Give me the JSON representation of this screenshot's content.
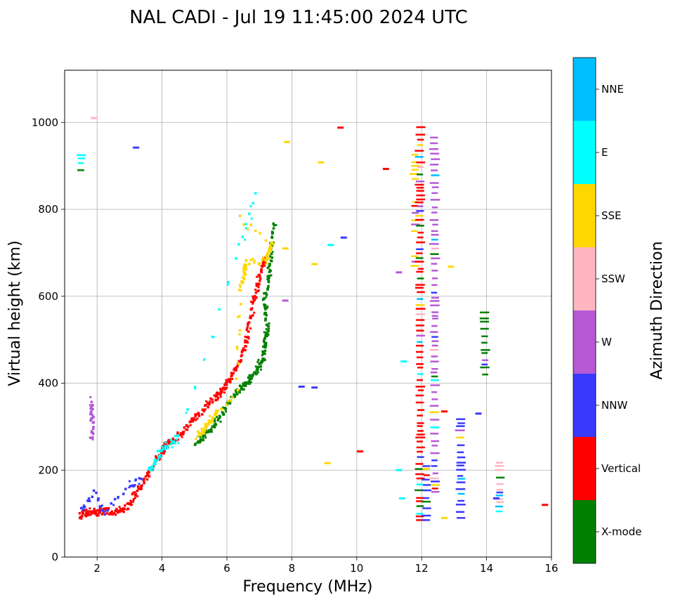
{
  "chart_data": {
    "type": "scatter",
    "title": "NAL CADI - Jul 19 11:45:00 2024 UTC",
    "xlabel": "Frequency (MHz)",
    "ylabel": "Virtual height (km)",
    "xlim": [
      1,
      16
    ],
    "ylim": [
      0,
      1120
    ],
    "xticks": [
      2,
      4,
      6,
      8,
      10,
      12,
      14,
      16
    ],
    "yticks": [
      0,
      200,
      400,
      600,
      800,
      1000
    ],
    "grid": true,
    "colorbar": {
      "label": "Azimuth Direction",
      "categories": [
        "X-mode",
        "Vertical",
        "NNW",
        "W",
        "SSW",
        "SSE",
        "E",
        "NNE"
      ],
      "colors": [
        "#008000",
        "#ff0000",
        "#3a3aff",
        "#b65ad6",
        "#ffb6c1",
        "#ffd700",
        "#00ffff",
        "#00bfff"
      ]
    },
    "traces": [
      {
        "category": "Vertical",
        "points": [
          [
            1.5,
            96
          ],
          [
            1.6,
            100
          ],
          [
            1.75,
            103
          ],
          [
            1.9,
            104
          ],
          [
            2.1,
            105
          ],
          [
            2.3,
            106
          ],
          [
            2.5,
            104
          ],
          [
            2.7,
            106
          ],
          [
            2.9,
            112
          ],
          [
            3.1,
            135
          ],
          [
            3.3,
            160
          ],
          [
            3.5,
            180
          ],
          [
            3.7,
            205
          ],
          [
            3.85,
            225
          ],
          [
            4.0,
            238
          ],
          [
            4.1,
            255
          ],
          [
            4.25,
            265
          ],
          [
            4.4,
            272
          ],
          [
            4.6,
            285
          ],
          [
            4.8,
            300
          ],
          [
            5.0,
            318
          ],
          [
            5.2,
            335
          ],
          [
            5.4,
            350
          ],
          [
            5.6,
            365
          ],
          [
            5.75,
            375
          ],
          [
            5.9,
            390
          ],
          [
            6.05,
            405
          ],
          [
            6.2,
            420
          ],
          [
            6.35,
            440
          ],
          [
            6.5,
            470
          ],
          [
            6.6,
            500
          ],
          [
            6.7,
            540
          ],
          [
            6.8,
            580
          ],
          [
            6.9,
            610
          ],
          [
            7.0,
            640
          ],
          [
            7.1,
            670
          ],
          [
            7.2,
            690
          ]
        ]
      },
      {
        "category": "X-mode",
        "points": [
          [
            5.0,
            260
          ],
          [
            5.2,
            270
          ],
          [
            5.4,
            285
          ],
          [
            5.6,
            300
          ],
          [
            5.8,
            325
          ],
          [
            6.0,
            350
          ],
          [
            6.2,
            370
          ],
          [
            6.4,
            385
          ],
          [
            6.55,
            395
          ],
          [
            6.7,
            410
          ],
          [
            6.85,
            425
          ],
          [
            7.0,
            440
          ],
          [
            7.1,
            455
          ],
          [
            7.15,
            480
          ],
          [
            7.2,
            500
          ],
          [
            7.25,
            530
          ],
          [
            7.2,
            560
          ],
          [
            7.15,
            590
          ],
          [
            7.25,
            620
          ],
          [
            7.3,
            650
          ],
          [
            7.35,
            690
          ],
          [
            7.4,
            730
          ],
          [
            7.45,
            770
          ]
        ]
      },
      {
        "category": "SSE",
        "points": [
          [
            5.1,
            280
          ],
          [
            5.3,
            295
          ],
          [
            5.5,
            315
          ],
          [
            5.7,
            330
          ],
          [
            6.3,
            380
          ],
          [
            6.4,
            620
          ],
          [
            6.5,
            640
          ],
          [
            6.55,
            660
          ],
          [
            6.6,
            680
          ],
          [
            7.2,
            680
          ],
          [
            7.3,
            700
          ],
          [
            7.4,
            720
          ],
          [
            6.2,
            790
          ]
        ]
      },
      {
        "category": "E",
        "points": [
          [
            3.6,
            200
          ],
          [
            3.8,
            220
          ],
          [
            4.0,
            245
          ],
          [
            4.3,
            265
          ],
          [
            4.5,
            275
          ],
          [
            6.3,
            690
          ],
          [
            7.0,
            860
          ]
        ]
      },
      {
        "category": "NNW",
        "points": [
          [
            1.5,
            110
          ],
          [
            1.9,
            150
          ],
          [
            2.2,
            100
          ],
          [
            3.0,
            165
          ],
          [
            3.4,
            180
          ]
        ]
      },
      {
        "category": "W",
        "points": [
          [
            1.85,
            360
          ],
          [
            1.8,
            330
          ],
          [
            1.9,
            300
          ],
          [
            1.8,
            265
          ]
        ]
      }
    ],
    "columns": [
      {
        "x": 1.5,
        "range": [
          890,
          935
        ],
        "category": "E"
      },
      {
        "x": 11.8,
        "range": [
          870,
          930
        ],
        "category": "SSE"
      },
      {
        "x": 11.8,
        "range": [
          750,
          820
        ],
        "category": "SSE"
      },
      {
        "x": 11.8,
        "range": [
          670,
          700
        ],
        "category": "SSE"
      },
      {
        "x": 11.95,
        "range": [
          85,
          1000
        ],
        "category": "Vertical"
      },
      {
        "x": 12.15,
        "range": [
          85,
          220
        ],
        "category": "NNW"
      },
      {
        "x": 12.4,
        "range": [
          150,
          980
        ],
        "category": "W"
      },
      {
        "x": 13.2,
        "range": [
          90,
          330
        ],
        "category": "NNW"
      },
      {
        "x": 13.95,
        "range": [
          420,
          575
        ],
        "category": "X-mode"
      },
      {
        "x": 14.4,
        "range": [
          105,
          235
        ],
        "category": "SSW"
      }
    ],
    "scattered": [
      {
        "x": 11.3,
        "y": 655,
        "category": "W"
      },
      {
        "x": 10.9,
        "y": 893,
        "category": "Vertical"
      },
      {
        "x": 9.5,
        "y": 988,
        "category": "Vertical"
      },
      {
        "x": 8.9,
        "y": 908,
        "category": "SSE"
      },
      {
        "x": 9.2,
        "y": 718,
        "category": "E"
      },
      {
        "x": 8.7,
        "y": 674,
        "category": "SSE"
      },
      {
        "x": 3.2,
        "y": 942,
        "category": "NNW"
      },
      {
        "x": 1.9,
        "y": 1010,
        "category": "SSW"
      },
      {
        "x": 8.3,
        "y": 392,
        "category": "NNW"
      },
      {
        "x": 8.7,
        "y": 390,
        "category": "NNW"
      },
      {
        "x": 10.1,
        "y": 243,
        "category": "Vertical"
      },
      {
        "x": 9.1,
        "y": 216,
        "category": "SSE"
      },
      {
        "x": 13.75,
        "y": 330,
        "category": "NNW"
      },
      {
        "x": 14.3,
        "y": 135,
        "category": "NNW"
      },
      {
        "x": 15.8,
        "y": 120,
        "category": "Vertical"
      },
      {
        "x": 12.7,
        "y": 90,
        "category": "SSE"
      },
      {
        "x": 12.7,
        "y": 335,
        "category": "Vertical"
      },
      {
        "x": 12.9,
        "y": 668,
        "category": "SSE"
      },
      {
        "x": 11.4,
        "y": 135,
        "category": "E"
      },
      {
        "x": 11.45,
        "y": 450,
        "category": "E"
      },
      {
        "x": 11.3,
        "y": 200,
        "category": "E"
      },
      {
        "x": 7.8,
        "y": 710,
        "category": "SSE"
      },
      {
        "x": 7.8,
        "y": 590,
        "category": "W"
      },
      {
        "x": 7.85,
        "y": 955,
        "category": "SSE"
      },
      {
        "x": 9.6,
        "y": 735,
        "category": "NNW"
      }
    ]
  }
}
